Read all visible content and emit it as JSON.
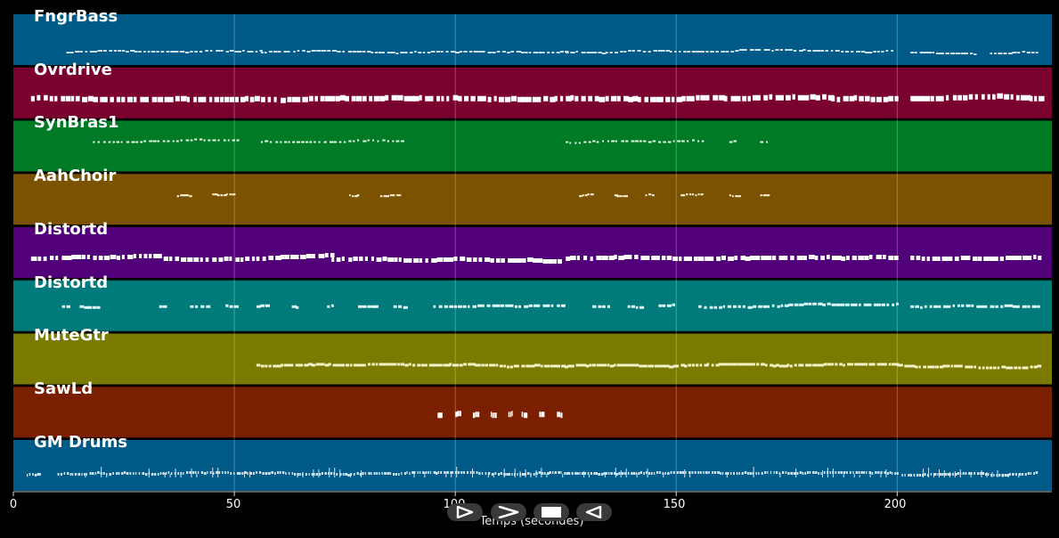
{
  "tracks": [
    {
      "name": "FngrBass",
      "color": "#005a87"
    },
    {
      "name": "Ovrdrive",
      "color": "#7a0030"
    },
    {
      "name": "SynBras1",
      "color": "#007a25"
    },
    {
      "name": "AahChoir",
      "color": "#7a5200"
    },
    {
      "name": "Distortd",
      "color": "#52007a"
    },
    {
      "name": "Distortd",
      "color": "#007a7a"
    },
    {
      "name": "MuteGtr",
      "color": "#7a7a00"
    },
    {
      "name": "SawLd",
      "color": "#7a2000"
    },
    {
      "name": "GM Drums",
      "color": "#005a87"
    }
  ],
  "axis": {
    "title": "Temps (secondes)",
    "ticks": [
      "0",
      "50",
      "100",
      "150",
      "200"
    ],
    "range": [
      0,
      235
    ]
  },
  "controls": [
    {
      "name": "play-icon"
    },
    {
      "name": "fast-forward-icon"
    },
    {
      "name": "stop-icon"
    },
    {
      "name": "rewind-icon"
    }
  ]
}
